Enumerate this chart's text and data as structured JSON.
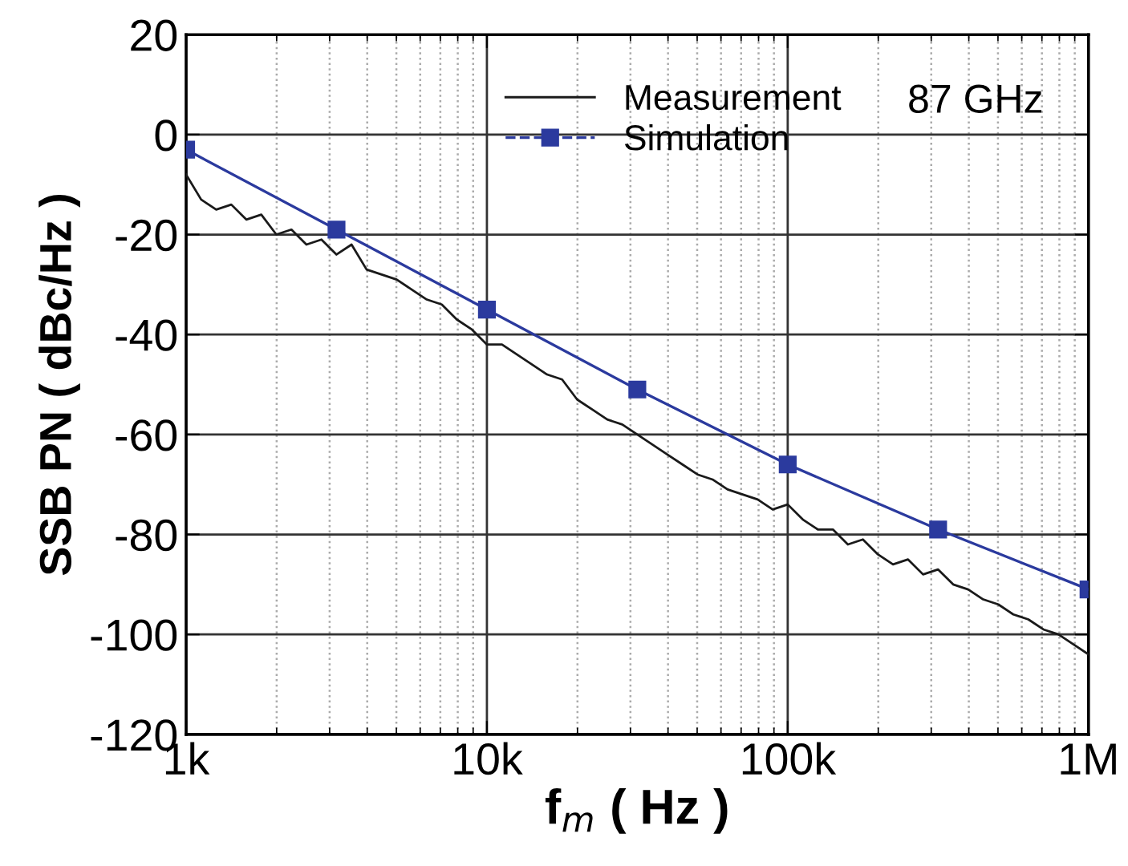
{
  "chart_data": {
    "type": "line",
    "xlabel": "f$_{m}$ ( Hz )",
    "ylabel": "SSB PN ( dBc/Hz )",
    "annotations": [
      "87 GHz"
    ],
    "log": "x",
    "grid": true,
    "legend": "top",
    "xlim": [
      1000,
      1000000
    ],
    "xticks": [
      {
        "value": 1000,
        "label": "1k"
      },
      {
        "value": 10000,
        "label": "10k"
      },
      {
        "value": 100000,
        "label": "100k"
      },
      {
        "value": 1000000,
        "label": "1M"
      }
    ],
    "ylim": [
      -120,
      20
    ],
    "yticks": [
      -120,
      -100,
      -80,
      -60,
      -40,
      -20,
      0,
      20
    ],
    "series": [
      {
        "name": "Measurement",
        "color": "#1a1a1a",
        "marker": "none",
        "line_style": "solid",
        "x": [
          1000,
          1122,
          1259,
          1413,
          1585,
          1778,
          1995,
          2239,
          2512,
          2818,
          3162,
          3548,
          3981,
          4467,
          5012,
          5623,
          6310,
          7079,
          7943,
          8913,
          10000,
          11220,
          12590,
          14130,
          15850,
          17780,
          19950,
          22390,
          25120,
          28180,
          31620,
          35480,
          39810,
          44670,
          50120,
          56230,
          63100,
          70790,
          79430,
          89130,
          100000,
          112200,
          125900,
          141300,
          158500,
          177800,
          199500,
          223900,
          251200,
          281800,
          316200,
          354800,
          398100,
          446700,
          501200,
          562300,
          631000,
          707900,
          794300,
          891300,
          1000000
        ],
        "values": [
          -8,
          -13,
          -15,
          -14,
          -17,
          -16,
          -20,
          -19,
          -22,
          -21,
          -24,
          -22,
          -27,
          -28,
          -29,
          -31,
          -33,
          -34,
          -37,
          -39,
          -42,
          -42,
          -44,
          -46,
          -48,
          -49,
          -53,
          -55,
          -57,
          -58,
          -60,
          -62,
          -64,
          -66,
          -68,
          -69,
          -71,
          -72,
          -73,
          -75,
          -74,
          -77,
          -79,
          -79,
          -82,
          -81,
          -84,
          -86,
          -85,
          -88,
          -87,
          -90,
          -91,
          -93,
          -94,
          -96,
          -97,
          -99,
          -100,
          -102,
          -104
        ]
      },
      {
        "name": "Simulation",
        "color": "#2b3a9e",
        "marker": "square",
        "line_style": "solid",
        "x": [
          1000,
          3162,
          10000,
          31620,
          100000,
          316200,
          1000000
        ],
        "values": [
          -3,
          -19,
          -35,
          -51,
          -66,
          -79,
          -91
        ]
      }
    ]
  }
}
